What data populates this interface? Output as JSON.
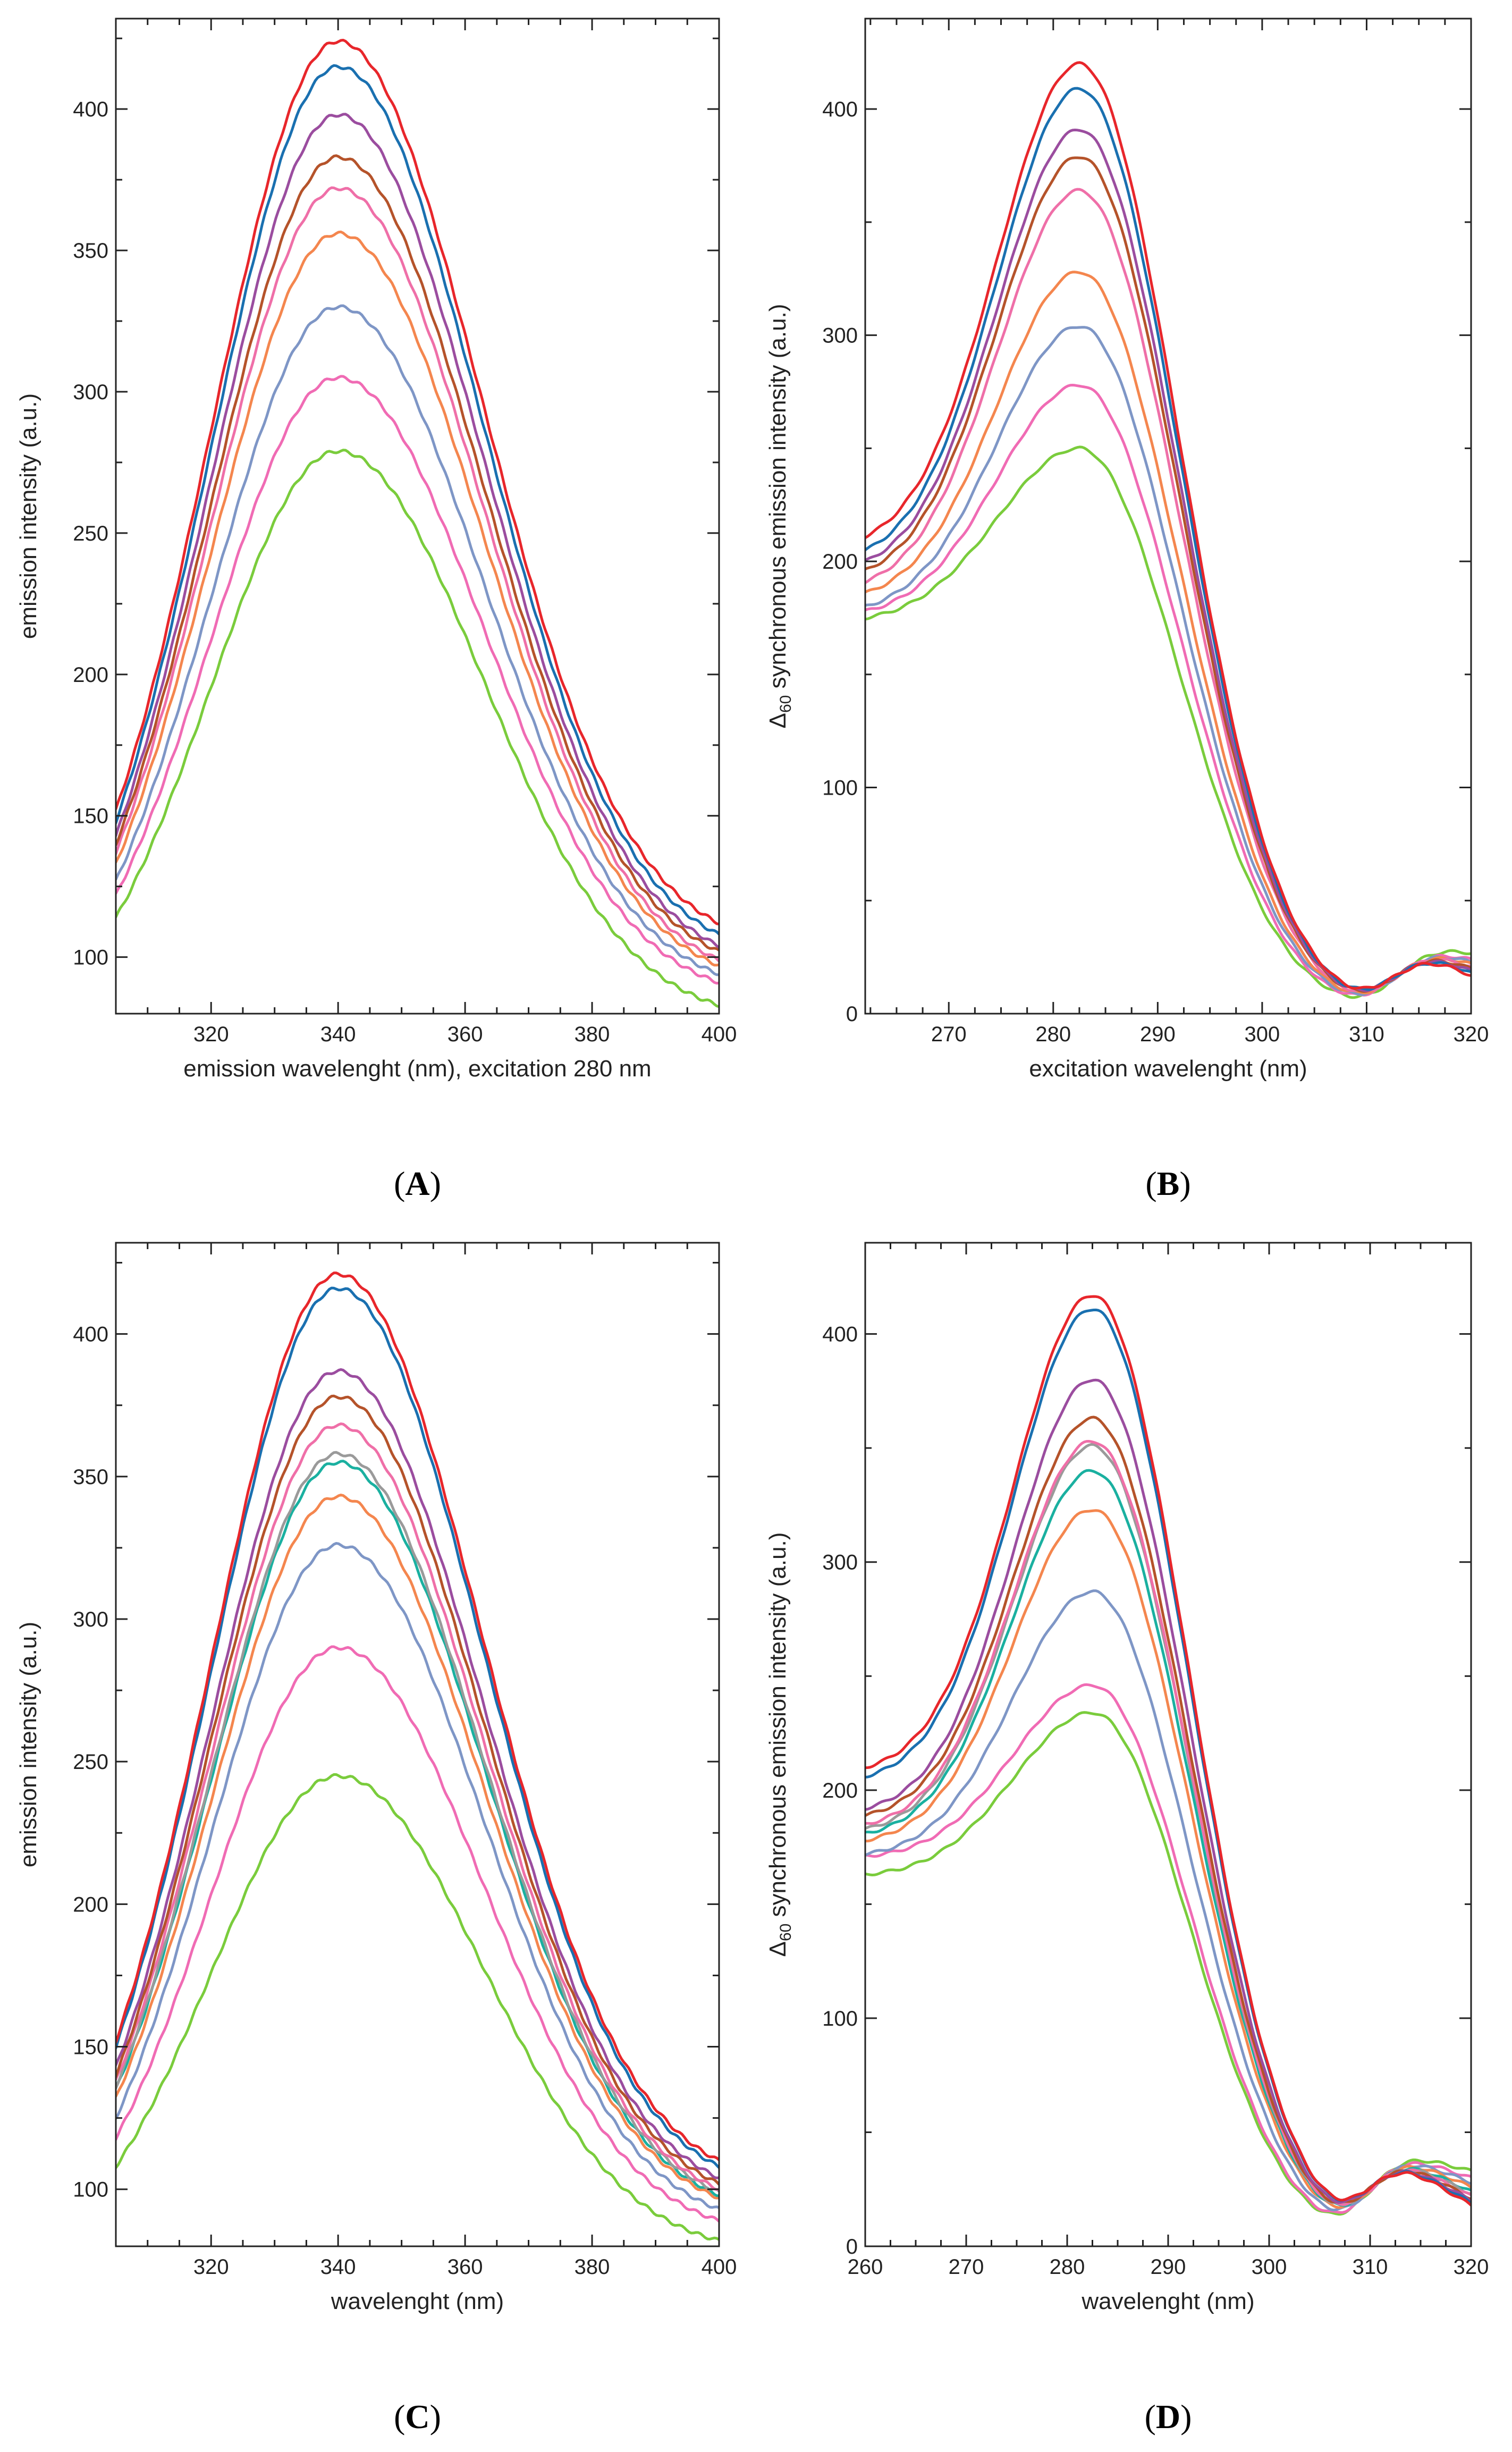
{
  "chart_data": [
    {
      "id": "A",
      "type": "line",
      "panel_label": "(A)",
      "panel_letter": "A",
      "xlabel": "emission wavelenght (nm), excitation 280 nm",
      "ylabel": "emission intensity (a.u.)",
      "xlim": [
        305,
        400
      ],
      "ylim": [
        80,
        432
      ],
      "xticks": [
        320,
        340,
        360,
        380,
        400
      ],
      "yticks": [
        100,
        150,
        200,
        250,
        300,
        350,
        400
      ],
      "peak_x": 340,
      "right": 400,
      "series": [
        {
          "name": "red",
          "color": "#e8262b",
          "start": 152,
          "peak": 424,
          "end": 112
        },
        {
          "name": "blue",
          "color": "#1a70b0",
          "start": 148,
          "peak": 415,
          "end": 108
        },
        {
          "name": "purple",
          "color": "#9b4d9f",
          "start": 143,
          "peak": 398,
          "end": 104
        },
        {
          "name": "brown",
          "color": "#b5532a",
          "start": 140,
          "peak": 383,
          "end": 102
        },
        {
          "name": "pink",
          "color": "#ef6fa8",
          "start": 137,
          "peak": 372,
          "end": 99
        },
        {
          "name": "orange",
          "color": "#f4864e",
          "start": 133,
          "peak": 356,
          "end": 97
        },
        {
          "name": "steel blue",
          "color": "#7e96c6",
          "start": 127,
          "peak": 330,
          "end": 94
        },
        {
          "name": "magenta",
          "color": "#f06bb4",
          "start": 122,
          "peak": 305,
          "end": 91
        },
        {
          "name": "green",
          "color": "#7acc3c",
          "start": 114,
          "peak": 279,
          "end": 83
        }
      ]
    },
    {
      "id": "B",
      "type": "line",
      "panel_label": "(B)",
      "panel_letter": "B",
      "xlabel": "excitation wavelenght (nm)",
      "ylabel_prefix": "Δ",
      "ylabel_sub": "60",
      "ylabel_rest": " synchronous emission intensity (a.u.)",
      "xlim": [
        262,
        320
      ],
      "ylim": [
        0,
        440
      ],
      "xticks": [
        270,
        280,
        290,
        300,
        310,
        320
      ],
      "yticks": [
        0,
        100,
        200,
        300,
        400
      ],
      "peak_x": 282.5,
      "cross_x": 313,
      "cross_y": 32,
      "right": 320,
      "series": [
        {
          "name": "red",
          "color": "#e8262b",
          "start": 211,
          "peak": 420,
          "end": 17
        },
        {
          "name": "blue",
          "color": "#1a70b0",
          "start": 205,
          "peak": 409,
          "end": 18
        },
        {
          "name": "purple",
          "color": "#9b4d9f",
          "start": 200,
          "peak": 391,
          "end": 19
        },
        {
          "name": "brown",
          "color": "#b5532a",
          "start": 196,
          "peak": 379,
          "end": 20
        },
        {
          "name": "pink",
          "color": "#ef6fa8",
          "start": 191,
          "peak": 364,
          "end": 21
        },
        {
          "name": "orange",
          "color": "#f4864e",
          "start": 186,
          "peak": 328,
          "end": 22
        },
        {
          "name": "steel blue",
          "color": "#7e96c6",
          "start": 180,
          "peak": 304,
          "end": 23
        },
        {
          "name": "magenta",
          "color": "#f06bb4",
          "start": 178,
          "peak": 278,
          "end": 24
        },
        {
          "name": "green",
          "color": "#7acc3c",
          "start": 175,
          "peak": 250,
          "end": 27
        }
      ]
    },
    {
      "id": "C",
      "type": "line",
      "panel_label": "(C)",
      "panel_letter": "C",
      "xlabel": "wavelenght (nm)",
      "ylabel": "emission intensity (a.u.)",
      "xlim": [
        305,
        400
      ],
      "ylim": [
        80,
        432
      ],
      "xticks": [
        320,
        340,
        360,
        380,
        400
      ],
      "yticks": [
        100,
        150,
        200,
        250,
        300,
        350,
        400
      ],
      "peak_x": 340,
      "right": 400,
      "series": [
        {
          "name": "red",
          "color": "#e8262b",
          "start": 152,
          "peak": 421,
          "end": 110
        },
        {
          "name": "blue",
          "color": "#1a70b0",
          "start": 150,
          "peak": 416,
          "end": 108
        },
        {
          "name": "purple",
          "color": "#9b4d9f",
          "start": 143,
          "peak": 387,
          "end": 104
        },
        {
          "name": "brown",
          "color": "#b5532a",
          "start": 140,
          "peak": 378,
          "end": 102
        },
        {
          "name": "pink",
          "color": "#ef6fa8",
          "start": 138,
          "peak": 368,
          "end": 100
        },
        {
          "name": "gray",
          "color": "#9a9a9a",
          "start": 136,
          "peak": 358,
          "end": 99
        },
        {
          "name": "teal",
          "color": "#1ab0a0",
          "start": 135,
          "peak": 355,
          "end": 98
        },
        {
          "name": "orange",
          "color": "#f4864e",
          "start": 132,
          "peak": 343,
          "end": 97
        },
        {
          "name": "steel blue",
          "color": "#7e96c6",
          "start": 125,
          "peak": 326,
          "end": 93
        },
        {
          "name": "magenta",
          "color": "#f06bb4",
          "start": 118,
          "peak": 290,
          "end": 89
        },
        {
          "name": "green",
          "color": "#7acc3c",
          "start": 108,
          "peak": 245,
          "end": 82
        }
      ]
    },
    {
      "id": "D",
      "type": "line",
      "panel_label": "(D)",
      "panel_letter": "D",
      "xlabel": "wavelenght (nm)",
      "ylabel_prefix": "Δ",
      "ylabel_sub": "60",
      "ylabel_rest": " synchronous emission intensity (a.u.)",
      "xlim": [
        260,
        320
      ],
      "ylim": [
        0,
        440
      ],
      "xticks": [
        260,
        270,
        280,
        290,
        300,
        310,
        320
      ],
      "yticks": [
        0,
        100,
        200,
        300,
        400
      ],
      "peak_x": 282.5,
      "cross_x": 310,
      "cross_y": 45,
      "right": 320,
      "series": [
        {
          "name": "red",
          "color": "#e8262b",
          "start": 210,
          "peak": 417,
          "end": 18
        },
        {
          "name": "blue",
          "color": "#1a70b0",
          "start": 206,
          "peak": 411,
          "end": 19
        },
        {
          "name": "purple",
          "color": "#9b4d9f",
          "start": 192,
          "peak": 380,
          "end": 20
        },
        {
          "name": "brown",
          "color": "#b5532a",
          "start": 189,
          "peak": 363,
          "end": 21
        },
        {
          "name": "pink",
          "color": "#ef6fa8",
          "start": 185,
          "peak": 353,
          "end": 22
        },
        {
          "name": "gray",
          "color": "#9a9a9a",
          "start": 183,
          "peak": 351,
          "end": 23
        },
        {
          "name": "teal",
          "color": "#1ab0a0",
          "start": 181,
          "peak": 340,
          "end": 24
        },
        {
          "name": "orange",
          "color": "#f4864e",
          "start": 178,
          "peak": 323,
          "end": 26
        },
        {
          "name": "steel blue",
          "color": "#7e96c6",
          "start": 172,
          "peak": 287,
          "end": 28
        },
        {
          "name": "magenta",
          "color": "#f06bb4",
          "start": 171,
          "peak": 246,
          "end": 30
        },
        {
          "name": "green",
          "color": "#7acc3c",
          "start": 163,
          "peak": 234,
          "end": 33
        }
      ]
    }
  ]
}
